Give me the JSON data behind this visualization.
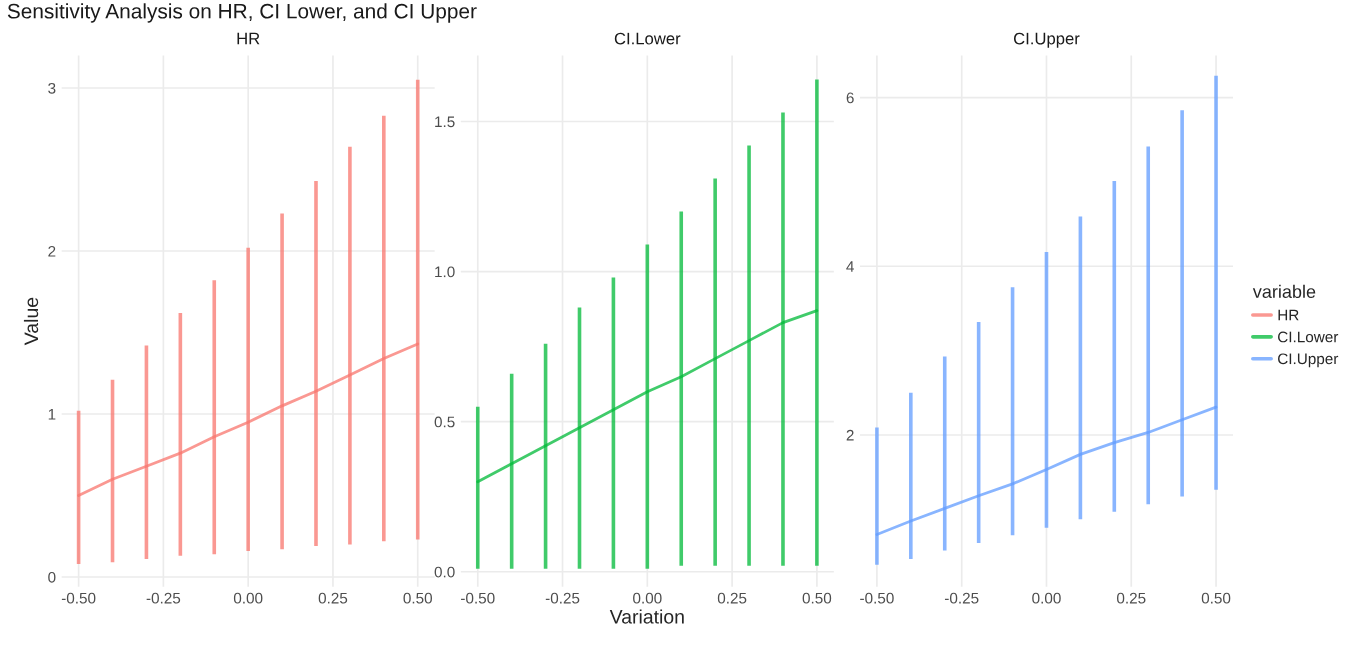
{
  "chart_data": [
    {
      "type": "line",
      "title": "HR",
      "ylabel": "Value",
      "annotations": [
        "Sensitivity Analysis on HR, CI Lower, and CI Upper"
      ],
      "x": [
        -0.5,
        -0.4,
        -0.3,
        -0.2,
        -0.1,
        0.0,
        0.1,
        0.2,
        0.3,
        0.4,
        0.5
      ],
      "series": [
        {
          "name": "HR",
          "color": "#f8766d",
          "values": [
            0.5,
            0.6,
            0.68,
            0.76,
            0.86,
            0.95,
            1.05,
            1.14,
            1.24,
            1.34,
            1.43
          ],
          "errors": [
            [
              0.08,
              1.02
            ],
            [
              0.09,
              1.21
            ],
            [
              0.11,
              1.42
            ],
            [
              0.13,
              1.62
            ],
            [
              0.14,
              1.82
            ],
            [
              0.16,
              2.02
            ],
            [
              0.17,
              2.23
            ],
            [
              0.19,
              2.43
            ],
            [
              0.2,
              2.64
            ],
            [
              0.22,
              2.83
            ],
            [
              0.23,
              3.05
            ]
          ]
        }
      ],
      "xlim": [
        -0.55,
        0.55
      ],
      "xticks": [
        {
          "value": -0.5,
          "label": "-0.50"
        },
        {
          "value": -0.25,
          "label": "-0.25"
        },
        {
          "value": 0.0,
          "label": "0.00"
        },
        {
          "value": 0.25,
          "label": "0.25"
        },
        {
          "value": 0.5,
          "label": "0.50"
        }
      ],
      "ylim": [
        -0.06,
        3.2
      ],
      "yticks": [
        0,
        1,
        2,
        3
      ],
      "grid": true
    },
    {
      "type": "line",
      "title": "CI.Lower",
      "xlabel": "Variation",
      "x": [
        -0.5,
        -0.4,
        -0.3,
        -0.2,
        -0.1,
        0.0,
        0.1,
        0.2,
        0.3,
        0.4,
        0.5
      ],
      "series": [
        {
          "name": "CI.Lower",
          "color": "#00ba38",
          "values": [
            0.3,
            0.36,
            0.42,
            0.48,
            0.54,
            0.6,
            0.65,
            0.71,
            0.77,
            0.83,
            0.87
          ],
          "errors": [
            [
              0.01,
              0.55
            ],
            [
              0.01,
              0.66
            ],
            [
              0.01,
              0.76
            ],
            [
              0.01,
              0.88
            ],
            [
              0.01,
              0.98
            ],
            [
              0.01,
              1.09
            ],
            [
              0.02,
              1.2
            ],
            [
              0.02,
              1.31
            ],
            [
              0.02,
              1.42
            ],
            [
              0.02,
              1.53
            ],
            [
              0.02,
              1.64
            ]
          ]
        }
      ],
      "xlim": [
        -0.55,
        0.55
      ],
      "xticks": [
        {
          "value": -0.5,
          "label": "-0.50"
        },
        {
          "value": -0.25,
          "label": "-0.25"
        },
        {
          "value": 0.0,
          "label": "0.00"
        },
        {
          "value": 0.25,
          "label": "0.25"
        },
        {
          "value": 0.5,
          "label": "0.50"
        }
      ],
      "ylim": [
        -0.05,
        1.72
      ],
      "yticks": [
        {
          "value": 0,
          "label": "0.0"
        },
        {
          "value": 0.5,
          "label": "0.5"
        },
        {
          "value": 1.0,
          "label": "1.0"
        },
        {
          "value": 1.5,
          "label": "1.5"
        }
      ],
      "grid": true
    },
    {
      "type": "line",
      "title": "CI.Upper",
      "legend": "right",
      "legend_title": "variable",
      "x": [
        -0.5,
        -0.4,
        -0.3,
        -0.2,
        -0.1,
        0.0,
        0.1,
        0.2,
        0.3,
        0.4,
        0.5
      ],
      "series": [
        {
          "name": "CI.Upper",
          "color": "#619cff",
          "values": [
            0.82,
            0.98,
            1.13,
            1.28,
            1.42,
            1.59,
            1.77,
            1.91,
            2.03,
            2.18,
            2.33
          ],
          "errors": [
            [
              0.46,
              2.09
            ],
            [
              0.53,
              2.5
            ],
            [
              0.63,
              2.93
            ],
            [
              0.72,
              3.34
            ],
            [
              0.81,
              3.75
            ],
            [
              0.9,
              4.17
            ],
            [
              1.0,
              4.59
            ],
            [
              1.09,
              5.01
            ],
            [
              1.18,
              5.42
            ],
            [
              1.27,
              5.85
            ],
            [
              1.35,
              6.26
            ]
          ]
        }
      ],
      "xlim": [
        -0.55,
        0.55
      ],
      "xticks": [
        {
          "value": -0.5,
          "label": "-0.50"
        },
        {
          "value": -0.25,
          "label": "-0.25"
        },
        {
          "value": 0.0,
          "label": "0.00"
        },
        {
          "value": 0.25,
          "label": "0.25"
        },
        {
          "value": 0.5,
          "label": "0.50"
        }
      ],
      "ylim": [
        0.2,
        6.5
      ],
      "yticks": [
        2,
        4,
        6
      ],
      "grid": true
    }
  ]
}
